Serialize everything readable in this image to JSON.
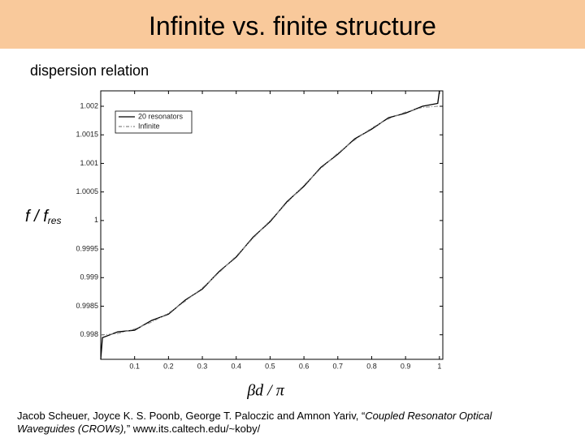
{
  "header": {
    "title": "Infinite vs. finite structure"
  },
  "subtitle": "dispersion relation",
  "chart_data": {
    "type": "line",
    "y_label": "f / f",
    "y_label_sub": "res",
    "x_label": "βd / π",
    "x": [
      0,
      0.005,
      0.05,
      0.1,
      0.15,
      0.2,
      0.25,
      0.3,
      0.35,
      0.4,
      0.45,
      0.5,
      0.55,
      0.6,
      0.65,
      0.7,
      0.75,
      0.8,
      0.85,
      0.9,
      0.95,
      0.995,
      1
    ],
    "series": [
      {
        "name": "20 resonators",
        "color": "#000000",
        "dash": false,
        "values": [
          0.99757,
          0.99795,
          0.99805,
          0.99808,
          0.99825,
          0.99836,
          0.99861,
          0.9988,
          0.99911,
          0.99936,
          0.99971,
          0.99998,
          1.00033,
          1.0006,
          1.00093,
          1.00116,
          1.00143,
          1.0016,
          1.0018,
          1.00188,
          1.002,
          1.00205,
          1.00227
        ]
      },
      {
        "name": "Infinite",
        "color": "#888888",
        "dash": true,
        "values": [
          0.998,
          0.998,
          0.99802,
          0.9981,
          0.99822,
          0.99838,
          0.99859,
          0.99882,
          0.99909,
          0.99938,
          0.99969,
          1,
          1.00031,
          1.00062,
          1.00091,
          1.00118,
          1.00141,
          1.00162,
          1.00178,
          1.0019,
          1.00198,
          1.002,
          1.002
        ]
      }
    ],
    "xlim": [
      0,
      1.01
    ],
    "ylim": [
      0.99757,
      1.00227
    ],
    "xticks": [
      0.1,
      0.2,
      0.3,
      0.4,
      0.5,
      0.6,
      0.7,
      0.8,
      0.9,
      1
    ],
    "yticks": [
      0.998,
      0.9985,
      0.999,
      0.9995,
      1,
      1.0005,
      1.001,
      1.0015,
      1.002
    ],
    "legend": "upper left"
  },
  "citation": {
    "before": "Jacob Scheuer, Joyce K. S. Poonb, George T. Paloczic and Amnon Yariv, “",
    "italic": "Coupled Resonator Optical Waveguides (CROWs),",
    "after": "” www.its.caltech.edu/~koby/"
  }
}
